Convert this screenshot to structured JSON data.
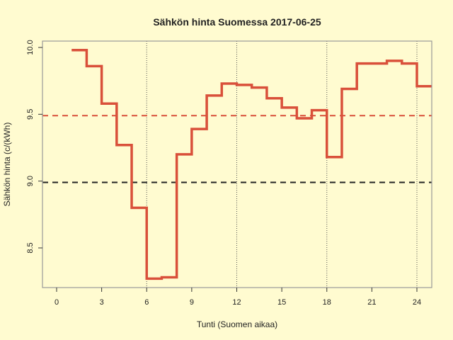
{
  "chart_data": {
    "type": "line",
    "step": true,
    "title": "Sähkön hinta Suomessa 2017-06-25",
    "xlabel": "Tunti (Suomen aikaa)",
    "ylabel": "Sähkön hinta (c/(kWh)",
    "xlim": [
      -1,
      25
    ],
    "ylim": [
      8.2,
      10.05
    ],
    "xticks": [
      0,
      3,
      6,
      9,
      12,
      15,
      18,
      21,
      24
    ],
    "xtick_labels": [
      "0",
      "3",
      "6",
      "9",
      "12",
      "15",
      "18",
      "21",
      "24"
    ],
    "yticks": [
      8.5,
      9.0,
      9.5,
      10.0
    ],
    "ytick_labels": [
      "8.5",
      "9.0",
      "9.5",
      "10.0"
    ],
    "vertical_gridlines": [
      6,
      12,
      18,
      24
    ],
    "series": [
      {
        "color": "#d9503a",
        "x": [
          1,
          2,
          3,
          4,
          5,
          6,
          7,
          8,
          9,
          10,
          11,
          12,
          13,
          14,
          15,
          16,
          17,
          18,
          19,
          20,
          21,
          22,
          23,
          24
        ],
        "values": [
          9.98,
          9.86,
          9.58,
          9.27,
          8.8,
          8.27,
          8.28,
          9.2,
          9.39,
          9.64,
          9.73,
          9.72,
          9.7,
          9.62,
          9.55,
          9.47,
          9.53,
          9.18,
          9.69,
          9.88,
          9.88,
          9.9,
          9.88,
          9.71
        ]
      }
    ],
    "reference_lines": [
      {
        "value": 9.49,
        "color": "#d9503a",
        "style": "dashed"
      },
      {
        "value": 8.99,
        "color": "#222222",
        "style": "dashed"
      }
    ]
  }
}
